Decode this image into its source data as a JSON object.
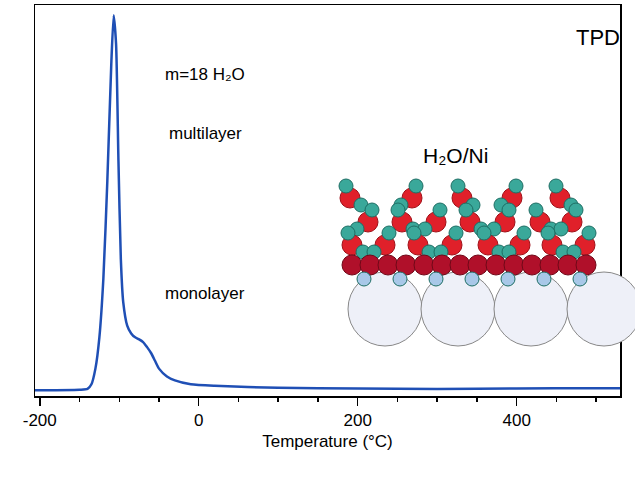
{
  "chart_data": {
    "type": "line",
    "title": "TPD",
    "xlabel": "Temperature (°C)",
    "annotations": [
      "m=18 H₂O",
      "multilayer",
      "monolayer",
      "H₂O/Ni"
    ],
    "x": [
      -206,
      -180,
      -150,
      -140,
      -135,
      -130,
      -125,
      -120,
      -115,
      -110,
      -107,
      -104,
      -101,
      -98,
      -95,
      -90,
      -85,
      -80,
      -75,
      -70,
      -65,
      -60,
      -55,
      -50,
      -40,
      -30,
      -10,
      20,
      100,
      200,
      300,
      400,
      500,
      530
    ],
    "values": [
      1.5,
      1.5,
      1.6,
      1.8,
      3,
      7,
      15,
      30,
      55,
      85,
      97.4,
      90,
      60,
      35,
      24,
      18,
      16,
      15,
      14.5,
      13.8,
      12.5,
      11,
      9,
      7,
      5,
      4,
      3,
      2.6,
      2.1,
      1.9,
      1.8,
      1.9,
      2.0,
      2.0
    ],
    "color": "#1f4fb5",
    "xlim": [
      -206,
      530
    ],
    "xticks": [
      -200,
      0,
      200,
      400
    ],
    "ylim": [
      0,
      100
    ],
    "tick_labels": "x",
    "grid": false
  }
}
